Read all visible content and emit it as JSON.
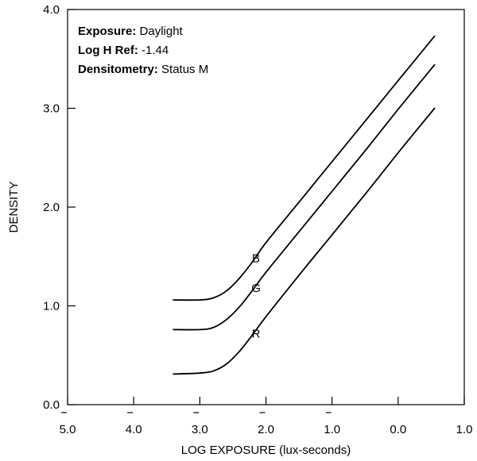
{
  "chart_data": {
    "type": "line",
    "xlabel": "LOG EXPOSURE (lux-seconds)",
    "ylabel": "DENSITY",
    "xlim": [
      -5.0,
      1.0
    ],
    "ylim": [
      0.0,
      4.0
    ],
    "x_ticks": [
      {
        "value": -5.0,
        "label": "5.0",
        "bar": true
      },
      {
        "value": -4.0,
        "label": "4.0",
        "bar": true
      },
      {
        "value": -3.0,
        "label": "3.0",
        "bar": true
      },
      {
        "value": -2.0,
        "label": "2.0",
        "bar": true
      },
      {
        "value": -1.0,
        "label": "1.0",
        "bar": true
      },
      {
        "value": 0.0,
        "label": "0.0",
        "bar": false
      },
      {
        "value": 1.0,
        "label": "1.0",
        "bar": false
      }
    ],
    "y_ticks": [
      {
        "value": 0.0,
        "label": "0.0"
      },
      {
        "value": 1.0,
        "label": "1.0"
      },
      {
        "value": 2.0,
        "label": "2.0"
      },
      {
        "value": 3.0,
        "label": "3.0"
      },
      {
        "value": 4.0,
        "label": "4.0"
      }
    ],
    "annotations": [
      {
        "key": "Exposure:",
        "value": " Daylight"
      },
      {
        "key": "Log H Ref:",
        "value": " -1.44"
      },
      {
        "key": "Densitometry:",
        "value": " Status M"
      }
    ],
    "series": [
      {
        "name": "B",
        "label_at": [
          -2.15,
          1.48
        ],
        "x": [
          -3.4,
          -3.0,
          -2.8,
          -2.6,
          -2.4,
          -2.2,
          -2.0,
          -1.5,
          -1.0,
          -0.5,
          0.0,
          0.55
        ],
        "y": [
          1.06,
          1.06,
          1.08,
          1.15,
          1.28,
          1.45,
          1.64,
          2.05,
          2.46,
          2.87,
          3.28,
          3.73
        ]
      },
      {
        "name": "G",
        "label_at": [
          -2.15,
          1.18
        ],
        "x": [
          -3.4,
          -3.0,
          -2.8,
          -2.6,
          -2.4,
          -2.2,
          -2.0,
          -1.5,
          -1.0,
          -0.5,
          0.0,
          0.55
        ],
        "y": [
          0.76,
          0.76,
          0.78,
          0.86,
          0.99,
          1.16,
          1.34,
          1.75,
          2.16,
          2.57,
          2.99,
          3.44
        ]
      },
      {
        "name": "R",
        "label_at": [
          -2.15,
          0.72
        ],
        "x": [
          -3.4,
          -3.0,
          -2.8,
          -2.6,
          -2.4,
          -2.2,
          -2.0,
          -1.5,
          -1.0,
          -0.5,
          0.0,
          0.55
        ],
        "y": [
          0.31,
          0.32,
          0.34,
          0.41,
          0.54,
          0.71,
          0.89,
          1.31,
          1.72,
          2.13,
          2.55,
          3.0
        ]
      }
    ],
    "grid": false
  }
}
